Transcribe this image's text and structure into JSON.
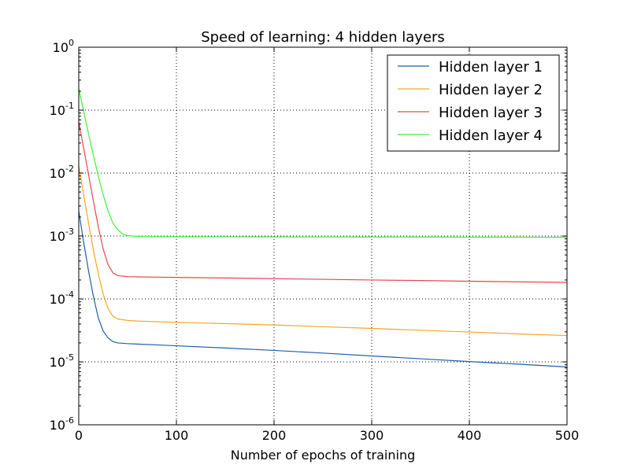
{
  "chart_data": {
    "type": "line",
    "title": "Speed of learning: 4 hidden layers",
    "xlabel": "Number of epochs of training",
    "ylabel": "",
    "xlim": [
      0,
      500
    ],
    "ylim": [
      1e-06,
      1
    ],
    "yscale": "log",
    "grid": true,
    "legend_position": "top-right",
    "x_ticks": [
      0,
      100,
      200,
      300,
      400,
      500
    ],
    "y_ticks": [
      {
        "base": "10",
        "exp": "0"
      },
      {
        "base": "10",
        "exp": "-1"
      },
      {
        "base": "10",
        "exp": "-2"
      },
      {
        "base": "10",
        "exp": "-3"
      },
      {
        "base": "10",
        "exp": "-4"
      },
      {
        "base": "10",
        "exp": "-5"
      },
      {
        "base": "10",
        "exp": "-6"
      }
    ],
    "series": [
      {
        "name": "Hidden layer 1",
        "color": "#1f5fa8",
        "x": [
          0,
          5,
          10,
          15,
          20,
          25,
          30,
          35,
          40,
          50,
          60,
          80,
          100,
          150,
          200,
          250,
          300,
          350,
          400,
          450,
          500
        ],
        "y": [
          0.0025,
          0.0008,
          0.00028,
          0.00011,
          5e-05,
          3.1e-05,
          2.4e-05,
          2.1e-05,
          2e-05,
          1.95e-05,
          1.92e-05,
          1.86e-05,
          1.8e-05,
          1.66e-05,
          1.52e-05,
          1.38e-05,
          1.24e-05,
          1.12e-05,
          1.01e-05,
          9.2e-06,
          8.3e-06
        ]
      },
      {
        "name": "Hidden layer 2",
        "color": "#f5a623",
        "x": [
          0,
          5,
          10,
          15,
          20,
          25,
          30,
          35,
          40,
          50,
          60,
          80,
          100,
          150,
          200,
          250,
          300,
          350,
          400,
          450,
          500
        ],
        "y": [
          0.013,
          0.0045,
          0.0016,
          0.0006,
          0.00025,
          0.00012,
          7e-05,
          5.3e-05,
          4.8e-05,
          4.55e-05,
          4.45e-05,
          4.35e-05,
          4.25e-05,
          4.05e-05,
          3.85e-05,
          3.62e-05,
          3.4e-05,
          3.18e-05,
          2.98e-05,
          2.78e-05,
          2.62e-05
        ]
      },
      {
        "name": "Hidden layer 3",
        "color": "#e8474c",
        "x": [
          0,
          5,
          10,
          15,
          20,
          25,
          30,
          35,
          40,
          50,
          60,
          80,
          100,
          150,
          200,
          250,
          300,
          350,
          400,
          450,
          500
        ],
        "y": [
          0.065,
          0.025,
          0.0095,
          0.0036,
          0.0014,
          0.00062,
          0.00035,
          0.00026,
          0.000235,
          0.000226,
          0.000224,
          0.000222,
          0.00022,
          0.000215,
          0.00021,
          0.000205,
          0.0002,
          0.000196,
          0.000191,
          0.000187,
          0.000183
        ]
      },
      {
        "name": "Hidden layer 4",
        "color": "#3cf03c",
        "x": [
          0,
          5,
          10,
          15,
          20,
          25,
          30,
          35,
          40,
          45,
          50,
          60,
          80,
          100,
          150,
          200,
          250,
          300,
          350,
          400,
          450,
          500
        ],
        "y": [
          0.22,
          0.095,
          0.042,
          0.019,
          0.009,
          0.0045,
          0.0025,
          0.0016,
          0.00125,
          0.00108,
          0.00101,
          0.00099,
          0.00098,
          0.000975,
          0.00097,
          0.000968,
          0.000966,
          0.000964,
          0.000962,
          0.00096,
          0.000958,
          0.000955
        ]
      }
    ]
  }
}
